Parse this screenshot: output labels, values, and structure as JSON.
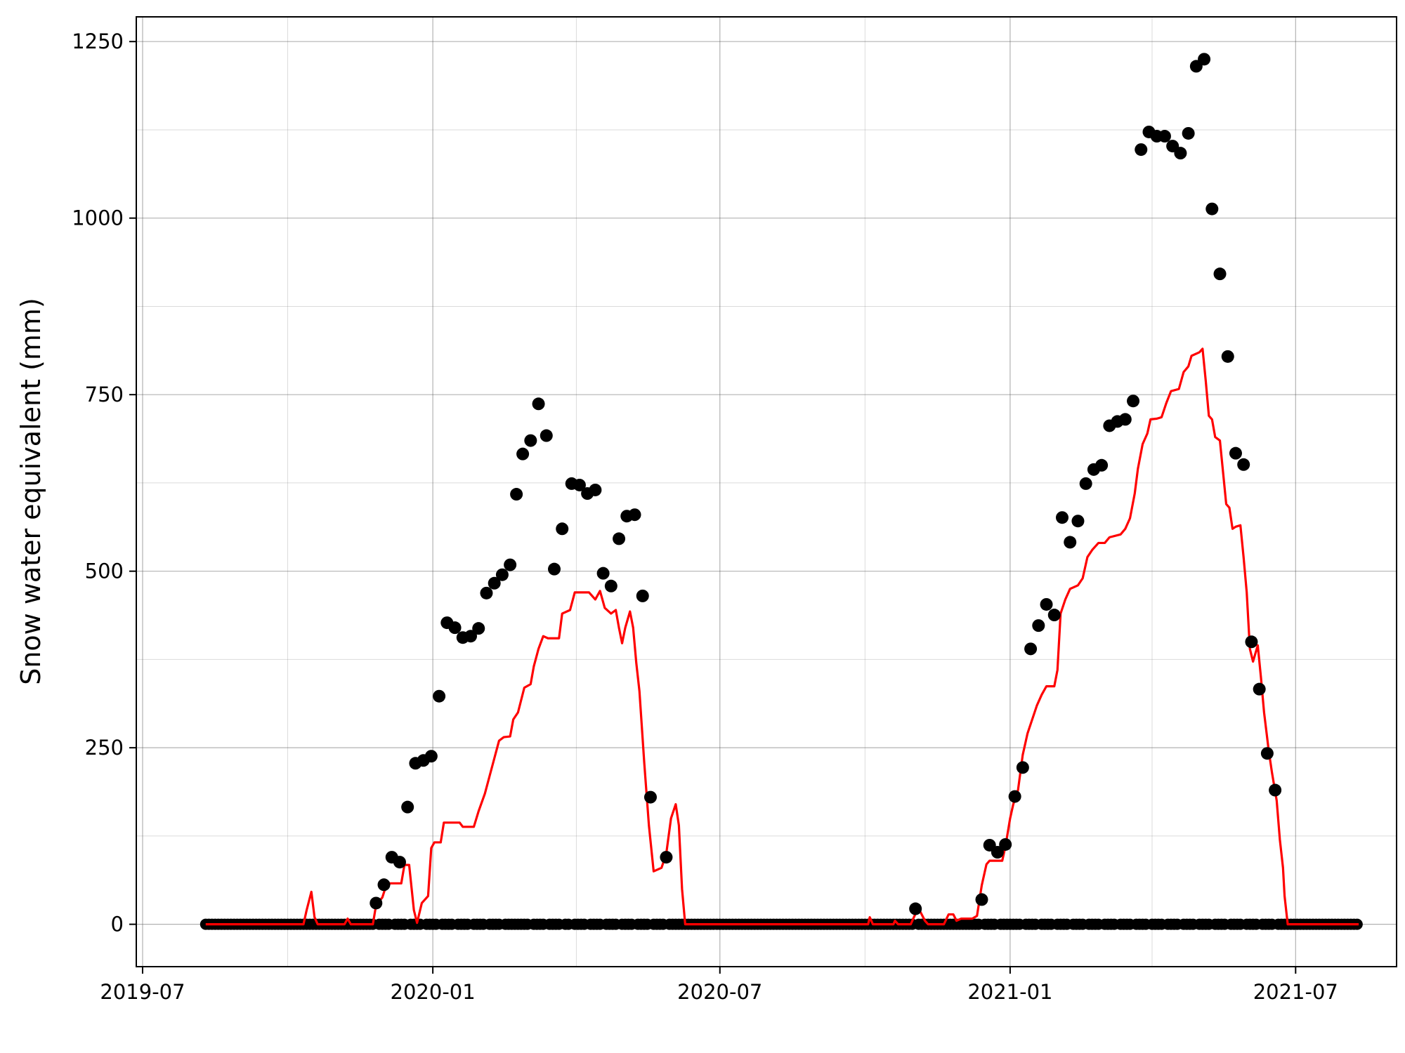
{
  "chart_data": {
    "type": "scatter",
    "xlabel": "",
    "ylabel": "Snow water equivalent (mm)",
    "xlim": [
      "2019-06-27",
      "2021-09-03"
    ],
    "ylim": [
      -60,
      1285
    ],
    "grid": true,
    "x_ticks": [
      "2019-07",
      "2020-01",
      "2020-07",
      "2021-01",
      "2021-07"
    ],
    "y_ticks": [
      0,
      250,
      500,
      750,
      1000,
      1250
    ],
    "colors": {
      "observed": "#000000",
      "simulated": "#ff0000"
    },
    "series": [
      {
        "kind": "points",
        "color": "#000000",
        "zero_range": [
          "2019-08-10",
          "2021-08-10"
        ],
        "points": [
          [
            "2019-11-26",
            30
          ],
          [
            "2019-12-01",
            56
          ],
          [
            "2019-12-06",
            95
          ],
          [
            "2019-12-11",
            88
          ],
          [
            "2019-12-16",
            166
          ],
          [
            "2019-12-21",
            228
          ],
          [
            "2019-12-26",
            232
          ],
          [
            "2019-12-31",
            238
          ],
          [
            "2020-01-05",
            323
          ],
          [
            "2020-01-10",
            427
          ],
          [
            "2020-01-15",
            420
          ],
          [
            "2020-01-20",
            406
          ],
          [
            "2020-01-25",
            408
          ],
          [
            "2020-01-30",
            419
          ],
          [
            "2020-02-04",
            469
          ],
          [
            "2020-02-09",
            483
          ],
          [
            "2020-02-14",
            495
          ],
          [
            "2020-02-19",
            509
          ],
          [
            "2020-02-23",
            609
          ],
          [
            "2020-02-27",
            666
          ],
          [
            "2020-03-03",
            685
          ],
          [
            "2020-03-08",
            737
          ],
          [
            "2020-03-13",
            692
          ],
          [
            "2020-03-18",
            503
          ],
          [
            "2020-03-23",
            560
          ],
          [
            "2020-03-29",
            624
          ],
          [
            "2020-04-03",
            622
          ],
          [
            "2020-04-08",
            610
          ],
          [
            "2020-04-13",
            615
          ],
          [
            "2020-04-18",
            497
          ],
          [
            "2020-04-23",
            479
          ],
          [
            "2020-04-28",
            546
          ],
          [
            "2020-05-03",
            578
          ],
          [
            "2020-05-08",
            580
          ],
          [
            "2020-05-13",
            465
          ],
          [
            "2020-05-18",
            180
          ],
          [
            "2020-05-28",
            95
          ],
          [
            "2020-11-02",
            22
          ],
          [
            "2020-12-14",
            35
          ],
          [
            "2020-12-19",
            112
          ],
          [
            "2020-12-24",
            102
          ],
          [
            "2020-12-29",
            113
          ],
          [
            "2021-01-04",
            181
          ],
          [
            "2021-01-09",
            222
          ],
          [
            "2021-01-14",
            390
          ],
          [
            "2021-01-19",
            423
          ],
          [
            "2021-01-24",
            453
          ],
          [
            "2021-01-29",
            438
          ],
          [
            "2021-02-03",
            576
          ],
          [
            "2021-02-08",
            541
          ],
          [
            "2021-02-13",
            571
          ],
          [
            "2021-02-18",
            624
          ],
          [
            "2021-02-23",
            644
          ],
          [
            "2021-02-28",
            650
          ],
          [
            "2021-03-05",
            706
          ],
          [
            "2021-03-10",
            712
          ],
          [
            "2021-03-15",
            715
          ],
          [
            "2021-03-20",
            741
          ],
          [
            "2021-03-25",
            1097
          ],
          [
            "2021-03-30",
            1122
          ],
          [
            "2021-04-04",
            1116
          ],
          [
            "2021-04-09",
            1116
          ],
          [
            "2021-04-14",
            1102
          ],
          [
            "2021-04-19",
            1092
          ],
          [
            "2021-04-24",
            1120
          ],
          [
            "2021-04-29",
            1215
          ],
          [
            "2021-05-04",
            1225
          ],
          [
            "2021-05-09",
            1013
          ],
          [
            "2021-05-14",
            921
          ],
          [
            "2021-05-19",
            804
          ],
          [
            "2021-05-24",
            667
          ],
          [
            "2021-05-29",
            651
          ],
          [
            "2021-06-03",
            400
          ],
          [
            "2021-06-08",
            333
          ],
          [
            "2021-06-13",
            242
          ],
          [
            "2021-06-18",
            190
          ]
        ]
      },
      {
        "kind": "line",
        "color": "#ff0000",
        "points": [
          [
            "2019-08-10",
            0
          ],
          [
            "2019-10-11",
            0
          ],
          [
            "2019-10-13",
            20
          ],
          [
            "2019-10-16",
            46
          ],
          [
            "2019-10-18",
            10
          ],
          [
            "2019-10-20",
            0
          ],
          [
            "2019-11-06",
            0
          ],
          [
            "2019-11-08",
            8
          ],
          [
            "2019-11-10",
            0
          ],
          [
            "2019-11-24",
            0
          ],
          [
            "2019-11-26",
            27
          ],
          [
            "2019-11-30",
            38
          ],
          [
            "2019-12-02",
            52
          ],
          [
            "2019-12-05",
            58
          ],
          [
            "2019-12-12",
            58
          ],
          [
            "2019-12-14",
            84
          ],
          [
            "2019-12-17",
            84
          ],
          [
            "2019-12-20",
            20
          ],
          [
            "2019-12-22",
            2
          ],
          [
            "2019-12-25",
            30
          ],
          [
            "2019-12-29",
            40
          ],
          [
            "2019-12-31",
            108
          ],
          [
            "2020-01-02",
            116
          ],
          [
            "2020-01-06",
            116
          ],
          [
            "2020-01-08",
            144
          ],
          [
            "2020-01-18",
            144
          ],
          [
            "2020-01-20",
            138
          ],
          [
            "2020-01-27",
            138
          ],
          [
            "2020-01-30",
            160
          ],
          [
            "2020-02-03",
            185
          ],
          [
            "2020-02-06",
            210
          ],
          [
            "2020-02-09",
            235
          ],
          [
            "2020-02-12",
            260
          ],
          [
            "2020-02-15",
            265
          ],
          [
            "2020-02-19",
            266
          ],
          [
            "2020-02-21",
            290
          ],
          [
            "2020-02-24",
            300
          ],
          [
            "2020-02-28",
            335
          ],
          [
            "2020-03-03",
            340
          ],
          [
            "2020-03-05",
            365
          ],
          [
            "2020-03-08",
            390
          ],
          [
            "2020-03-11",
            408
          ],
          [
            "2020-03-14",
            405
          ],
          [
            "2020-03-21",
            405
          ],
          [
            "2020-03-23",
            440
          ],
          [
            "2020-03-28",
            445
          ],
          [
            "2020-03-31",
            470
          ],
          [
            "2020-04-09",
            470
          ],
          [
            "2020-04-13",
            460
          ],
          [
            "2020-04-16",
            472
          ],
          [
            "2020-04-19",
            448
          ],
          [
            "2020-04-23",
            440
          ],
          [
            "2020-04-26",
            445
          ],
          [
            "2020-04-28",
            420
          ],
          [
            "2020-04-30",
            398
          ],
          [
            "2020-05-02",
            420
          ],
          [
            "2020-05-05",
            443
          ],
          [
            "2020-05-07",
            420
          ],
          [
            "2020-05-09",
            370
          ],
          [
            "2020-05-11",
            330
          ],
          [
            "2020-05-14",
            230
          ],
          [
            "2020-05-17",
            140
          ],
          [
            "2020-05-20",
            75
          ],
          [
            "2020-05-23",
            78
          ],
          [
            "2020-05-25",
            80
          ],
          [
            "2020-05-28",
            100
          ],
          [
            "2020-05-31",
            150
          ],
          [
            "2020-06-03",
            170
          ],
          [
            "2020-06-05",
            140
          ],
          [
            "2020-06-07",
            50
          ],
          [
            "2020-06-09",
            0
          ],
          [
            "2020-10-03",
            0
          ],
          [
            "2020-10-04",
            10
          ],
          [
            "2020-10-06",
            0
          ],
          [
            "2020-10-19",
            0
          ],
          [
            "2020-10-20",
            5
          ],
          [
            "2020-10-22",
            0
          ],
          [
            "2020-10-30",
            0
          ],
          [
            "2020-11-02",
            15
          ],
          [
            "2020-11-05",
            18
          ],
          [
            "2020-11-08",
            5
          ],
          [
            "2020-11-10",
            0
          ],
          [
            "2020-11-20",
            0
          ],
          [
            "2020-11-23",
            14
          ],
          [
            "2020-11-26",
            14
          ],
          [
            "2020-11-28",
            5
          ],
          [
            "2020-12-01",
            8
          ],
          [
            "2020-12-08",
            8
          ],
          [
            "2020-12-11",
            12
          ],
          [
            "2020-12-14",
            55
          ],
          [
            "2020-12-17",
            85
          ],
          [
            "2020-12-19",
            90
          ],
          [
            "2020-12-27",
            90
          ],
          [
            "2020-12-29",
            110
          ],
          [
            "2021-01-01",
            150
          ],
          [
            "2021-01-03",
            170
          ],
          [
            "2021-01-06",
            190
          ],
          [
            "2021-01-09",
            240
          ],
          [
            "2021-01-12",
            270
          ],
          [
            "2021-01-15",
            290
          ],
          [
            "2021-01-18",
            310
          ],
          [
            "2021-01-21",
            325
          ],
          [
            "2021-01-24",
            337
          ],
          [
            "2021-01-29",
            337
          ],
          [
            "2021-01-31",
            360
          ],
          [
            "2021-02-02",
            440
          ],
          [
            "2021-02-05",
            460
          ],
          [
            "2021-02-08",
            475
          ],
          [
            "2021-02-13",
            480
          ],
          [
            "2021-02-16",
            490
          ],
          [
            "2021-02-19",
            520
          ],
          [
            "2021-02-22",
            530
          ],
          [
            "2021-02-26",
            540
          ],
          [
            "2021-03-02",
            540
          ],
          [
            "2021-03-05",
            548
          ],
          [
            "2021-03-12",
            552
          ],
          [
            "2021-03-15",
            560
          ],
          [
            "2021-03-18",
            575
          ],
          [
            "2021-03-21",
            610
          ],
          [
            "2021-03-23",
            645
          ],
          [
            "2021-03-26",
            680
          ],
          [
            "2021-03-29",
            695
          ],
          [
            "2021-03-31",
            715
          ],
          [
            "2021-04-04",
            716
          ],
          [
            "2021-04-07",
            718
          ],
          [
            "2021-04-10",
            738
          ],
          [
            "2021-04-13",
            755
          ],
          [
            "2021-04-18",
            758
          ],
          [
            "2021-04-21",
            782
          ],
          [
            "2021-04-24",
            790
          ],
          [
            "2021-04-26",
            805
          ],
          [
            "2021-05-01",
            810
          ],
          [
            "2021-05-03",
            815
          ],
          [
            "2021-05-05",
            770
          ],
          [
            "2021-05-07",
            720
          ],
          [
            "2021-05-09",
            715
          ],
          [
            "2021-05-11",
            690
          ],
          [
            "2021-05-14",
            685
          ],
          [
            "2021-05-16",
            640
          ],
          [
            "2021-05-18",
            595
          ],
          [
            "2021-05-20",
            590
          ],
          [
            "2021-05-22",
            560
          ],
          [
            "2021-05-24",
            563
          ],
          [
            "2021-05-27",
            565
          ],
          [
            "2021-05-29",
            520
          ],
          [
            "2021-05-31",
            470
          ],
          [
            "2021-06-02",
            390
          ],
          [
            "2021-06-04",
            372
          ],
          [
            "2021-06-07",
            395
          ],
          [
            "2021-06-09",
            350
          ],
          [
            "2021-06-11",
            300
          ],
          [
            "2021-06-14",
            245
          ],
          [
            "2021-06-16",
            215
          ],
          [
            "2021-06-19",
            175
          ],
          [
            "2021-06-21",
            120
          ],
          [
            "2021-06-23",
            80
          ],
          [
            "2021-06-24",
            40
          ],
          [
            "2021-06-26",
            0
          ],
          [
            "2021-08-10",
            0
          ]
        ]
      }
    ]
  }
}
